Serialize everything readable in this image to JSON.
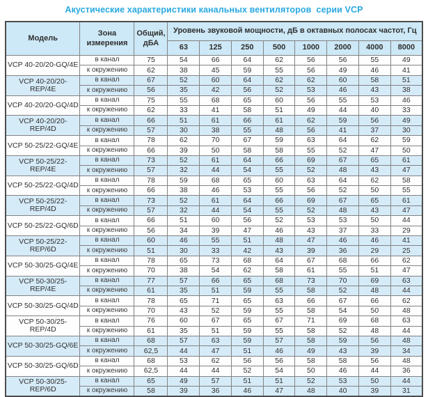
{
  "title": "Акустические характеристики канальных вентиляторов  серии VCP",
  "table": {
    "col_model": "Модель",
    "col_zone": "Зона измерения",
    "col_total": "Общий, дБА",
    "col_spl": "Уровень звуковой мощности, дБ в октавных полосах частот, Гц",
    "frequencies": [
      "63",
      "125",
      "250",
      "500",
      "1000",
      "2000",
      "4000",
      "8000"
    ],
    "models": [
      {
        "name": "VCP 40-20/20-GQ/4E",
        "shaded": false,
        "rows": [
          {
            "zone": "в канал",
            "total": "75",
            "levels": [
              54,
              66,
              64,
              62,
              56,
              56,
              55,
              49
            ]
          },
          {
            "zone": "к окружению",
            "total": "62",
            "levels": [
              38,
              45,
              59,
              55,
              56,
              49,
              46,
              41
            ]
          }
        ]
      },
      {
        "name": "VCP 40-20/20-REP/4E",
        "shaded": true,
        "rows": [
          {
            "zone": "в канал",
            "total": "67",
            "levels": [
              52,
              60,
              64,
              62,
              62,
              60,
              58,
              51
            ]
          },
          {
            "zone": "к окружению",
            "total": "56",
            "levels": [
              35,
              42,
              56,
              52,
              53,
              46,
              43,
              38
            ]
          }
        ]
      },
      {
        "name": "VCP 40-20/20-GQ/4D",
        "shaded": false,
        "rows": [
          {
            "zone": "в канал",
            "total": "75",
            "levels": [
              55,
              68,
              65,
              60,
              56,
              55,
              53,
              46
            ]
          },
          {
            "zone": "к окружению",
            "total": "62",
            "levels": [
              33,
              41,
              58,
              51,
              49,
              44,
              40,
              33
            ]
          }
        ]
      },
      {
        "name": "VCP 40-20/20-REP/4D",
        "shaded": true,
        "rows": [
          {
            "zone": "в канал",
            "total": "66",
            "levels": [
              51,
              61,
              66,
              61,
              62,
              59,
              56,
              49
            ]
          },
          {
            "zone": "к окружению",
            "total": "57",
            "levels": [
              30,
              38,
              55,
              48,
              56,
              41,
              37,
              30
            ]
          }
        ]
      },
      {
        "name": "VCP 50-25/22-GQ/4E",
        "shaded": false,
        "rows": [
          {
            "zone": "в канал",
            "total": "78",
            "levels": [
              62,
              70,
              67,
              59,
              63,
              64,
              62,
              59
            ]
          },
          {
            "zone": "к окружению",
            "total": "66",
            "levels": [
              39,
              50,
              58,
              58,
              55,
              52,
              47,
              50
            ]
          }
        ]
      },
      {
        "name": "VCP 50-25/22-REP/4E",
        "shaded": true,
        "rows": [
          {
            "zone": "в канал",
            "total": "73",
            "levels": [
              52,
              61,
              64,
              66,
              69,
              67,
              65,
              61
            ]
          },
          {
            "zone": "к окружению",
            "total": "57",
            "levels": [
              32,
              44,
              54,
              55,
              52,
              48,
              43,
              47
            ]
          }
        ]
      },
      {
        "name": "VCP 50-25/22-GQ/4D",
        "shaded": false,
        "rows": [
          {
            "zone": "в канал",
            "total": "78",
            "levels": [
              59,
              68,
              65,
              60,
              63,
              64,
              62,
              58
            ]
          },
          {
            "zone": "к окружению",
            "total": "66",
            "levels": [
              38,
              46,
              53,
              55,
              56,
              52,
              50,
              55
            ]
          }
        ]
      },
      {
        "name": "VCP 50-25/22-REP/4D",
        "shaded": true,
        "rows": [
          {
            "zone": "в канал",
            "total": "73",
            "levels": [
              52,
              61,
              64,
              66,
              69,
              67,
              65,
              61
            ]
          },
          {
            "zone": "к окружению",
            "total": "57",
            "levels": [
              32,
              44,
              54,
              55,
              52,
              48,
              43,
              47
            ]
          }
        ]
      },
      {
        "name": "VCP 50-25/22-GQ/6D",
        "shaded": false,
        "rows": [
          {
            "zone": "в канал",
            "total": "66",
            "levels": [
              51,
              60,
              56,
              52,
              53,
              53,
              50,
              44
            ]
          },
          {
            "zone": "к окружению",
            "total": "56",
            "levels": [
              34,
              39,
              47,
              46,
              43,
              37,
              33,
              29
            ]
          }
        ]
      },
      {
        "name": "VCP 50-25/22-REP/6D",
        "shaded": true,
        "rows": [
          {
            "zone": "в канал",
            "total": "60",
            "levels": [
              46,
              55,
              51,
              48,
              47,
              46,
              46,
              41
            ]
          },
          {
            "zone": "к окружению",
            "total": "51",
            "levels": [
              30,
              33,
              42,
              43,
              39,
              36,
              29,
              25
            ]
          }
        ]
      },
      {
        "name": "VCP 50-30/25-GQ/4E",
        "shaded": false,
        "rows": [
          {
            "zone": "в канал",
            "total": "78",
            "levels": [
              65,
              73,
              68,
              64,
              67,
              68,
              66,
              62
            ]
          },
          {
            "zone": "к окружению",
            "total": "70",
            "levels": [
              38,
              54,
              62,
              58,
              61,
              55,
              51,
              47
            ]
          }
        ]
      },
      {
        "name": "VCP 50-30/25-REP/4E",
        "shaded": true,
        "rows": [
          {
            "zone": "в канал",
            "total": "77",
            "levels": [
              57,
              66,
              65,
              68,
              73,
              70,
              69,
              63
            ]
          },
          {
            "zone": "к окружению",
            "total": "61",
            "levels": [
              35,
              51,
              59,
              55,
              58,
              52,
              48,
              44
            ]
          }
        ]
      },
      {
        "name": "VCP 50-30/25-GQ/4D",
        "shaded": false,
        "rows": [
          {
            "zone": "в канал",
            "total": "78",
            "levels": [
              65,
              71,
              65,
              63,
              66,
              67,
              66,
              62
            ]
          },
          {
            "zone": "к окружению",
            "total": "70",
            "levels": [
              43,
              52,
              59,
              55,
              58,
              54,
              50,
              48
            ]
          }
        ]
      },
      {
        "name": "VCP 50-30/25-REP/4D",
        "shaded": false,
        "rows": [
          {
            "zone": "в канал",
            "total": "76",
            "levels": [
              60,
              67,
              65,
              67,
              71,
              69,
              68,
              63
            ]
          },
          {
            "zone": "к окружению",
            "total": "61",
            "levels": [
              35,
              51,
              59,
              55,
              58,
              52,
              48,
              44
            ]
          }
        ]
      },
      {
        "name": "VCP 50-30/25-GQ/6E",
        "shaded": true,
        "rows": [
          {
            "zone": "в канал",
            "total": "68",
            "levels": [
              57,
              63,
              59,
              57,
              58,
              59,
              56,
              48
            ]
          },
          {
            "zone": "к окружению",
            "total": "62,5",
            "levels": [
              44,
              47,
              51,
              46,
              49,
              43,
              39,
              34
            ]
          }
        ]
      },
      {
        "name": "VCP 50-30/25-GQ/6D",
        "shaded": false,
        "rows": [
          {
            "zone": "в канал",
            "total": "68",
            "levels": [
              53,
              62,
              56,
              56,
              58,
              58,
              56,
              48
            ]
          },
          {
            "zone": "к окружению",
            "total": "62,5",
            "levels": [
              44,
              44,
              52,
              54,
              50,
              46,
              44,
              36
            ]
          }
        ]
      },
      {
        "name": "VCP 50-30/25-REP/6D",
        "shaded": true,
        "rows": [
          {
            "zone": "в канал",
            "total": "65",
            "levels": [
              49,
              57,
              51,
              51,
              52,
              53,
              50,
              44
            ]
          },
          {
            "zone": "к окружению",
            "total": "58",
            "levels": [
              39,
              36,
              46,
              47,
              48,
              40,
              39,
              31
            ]
          }
        ]
      }
    ]
  }
}
